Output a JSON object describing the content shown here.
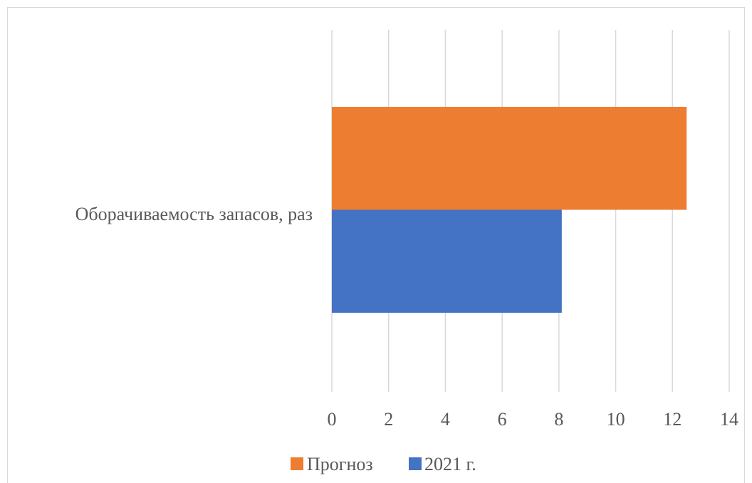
{
  "chart_data": {
    "type": "bar",
    "orientation": "horizontal",
    "categories": [
      "Оборачиваемость запасов, раз"
    ],
    "series": [
      {
        "name": "2021 г.",
        "values": [
          8.1
        ],
        "color": "#4472c4"
      },
      {
        "name": "Прогноз",
        "values": [
          12.5
        ],
        "color": "#ed7d31"
      }
    ],
    "xlim": [
      0,
      14
    ],
    "xticks": [
      "0",
      "2",
      "4",
      "6",
      "8",
      "10",
      "12",
      "14"
    ],
    "grid": true,
    "legend_position": "bottom",
    "legend_order": [
      "Прогноз",
      "2021 г."
    ]
  }
}
